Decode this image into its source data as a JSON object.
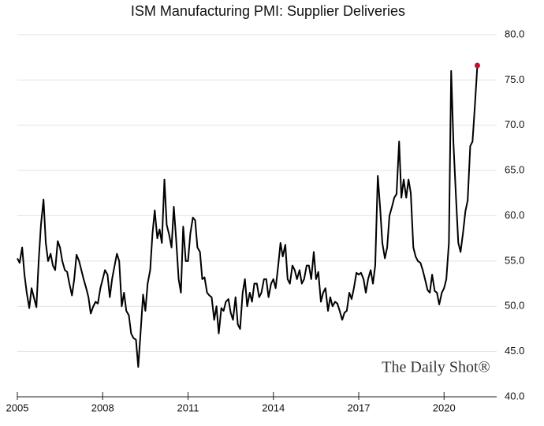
{
  "chart_data": {
    "type": "line",
    "title": "ISM Manufacturing PMI: Supplier Deliveries",
    "watermark": "The Daily Shot®",
    "xlim": [
      2005,
      2021.85
    ],
    "xticks": [
      2005,
      2008,
      2011,
      2014,
      2017,
      2020
    ],
    "ylim": [
      40,
      80
    ],
    "yticks": [
      {
        "value": 40,
        "label": "40.0"
      },
      {
        "value": 45,
        "label": "45.0"
      },
      {
        "value": 50,
        "label": "50.0"
      },
      {
        "value": 55,
        "label": "55.0"
      },
      {
        "value": 60,
        "label": "60.0"
      },
      {
        "value": 65,
        "label": "65.0"
      },
      {
        "value": 70,
        "label": "70.0"
      },
      {
        "value": 75,
        "label": "75.0"
      },
      {
        "value": 80,
        "label": "80.0"
      }
    ],
    "grid": true,
    "y_axis_side": "right",
    "highlight_last": true,
    "highlight_color": "#c8102e",
    "x": [
      2005.0,
      2005.08,
      2005.17,
      2005.25,
      2005.33,
      2005.42,
      2005.5,
      2005.58,
      2005.67,
      2005.75,
      2005.83,
      2005.92,
      2006.0,
      2006.08,
      2006.17,
      2006.25,
      2006.33,
      2006.42,
      2006.5,
      2006.58,
      2006.67,
      2006.75,
      2006.83,
      2006.92,
      2007.0,
      2007.08,
      2007.17,
      2007.25,
      2007.33,
      2007.42,
      2007.5,
      2007.58,
      2007.67,
      2007.75,
      2007.83,
      2007.92,
      2008.0,
      2008.08,
      2008.17,
      2008.25,
      2008.33,
      2008.42,
      2008.5,
      2008.58,
      2008.67,
      2008.75,
      2008.83,
      2008.92,
      2009.0,
      2009.08,
      2009.17,
      2009.25,
      2009.33,
      2009.42,
      2009.5,
      2009.58,
      2009.67,
      2009.75,
      2009.83,
      2009.92,
      2010.0,
      2010.08,
      2010.17,
      2010.25,
      2010.33,
      2010.42,
      2010.5,
      2010.58,
      2010.67,
      2010.75,
      2010.83,
      2010.92,
      2011.0,
      2011.08,
      2011.17,
      2011.25,
      2011.33,
      2011.42,
      2011.5,
      2011.58,
      2011.67,
      2011.75,
      2011.83,
      2011.92,
      2012.0,
      2012.08,
      2012.17,
      2012.25,
      2012.33,
      2012.42,
      2012.5,
      2012.58,
      2012.67,
      2012.75,
      2012.83,
      2012.92,
      2013.0,
      2013.08,
      2013.17,
      2013.25,
      2013.33,
      2013.42,
      2013.5,
      2013.58,
      2013.67,
      2013.75,
      2013.83,
      2013.92,
      2014.0,
      2014.08,
      2014.17,
      2014.25,
      2014.33,
      2014.42,
      2014.5,
      2014.58,
      2014.67,
      2014.75,
      2014.83,
      2014.92,
      2015.0,
      2015.08,
      2015.17,
      2015.25,
      2015.33,
      2015.42,
      2015.5,
      2015.58,
      2015.67,
      2015.75,
      2015.83,
      2015.92,
      2016.0,
      2016.08,
      2016.17,
      2016.25,
      2016.33,
      2016.42,
      2016.5,
      2016.58,
      2016.67,
      2016.75,
      2016.83,
      2016.92,
      2017.0,
      2017.08,
      2017.17,
      2017.25,
      2017.33,
      2017.42,
      2017.5,
      2017.58,
      2017.67,
      2017.75,
      2017.83,
      2017.92,
      2018.0,
      2018.08,
      2018.17,
      2018.25,
      2018.33,
      2018.42,
      2018.5,
      2018.58,
      2018.67,
      2018.75,
      2018.83,
      2018.92,
      2019.0,
      2019.08,
      2019.17,
      2019.25,
      2019.33,
      2019.42,
      2019.5,
      2019.58,
      2019.67,
      2019.75,
      2019.83,
      2019.92,
      2020.0,
      2020.08,
      2020.17,
      2020.25,
      2020.33,
      2020.42,
      2020.5,
      2020.58,
      2020.67,
      2020.75,
      2020.83,
      2020.92,
      2021.0,
      2021.08,
      2021.17
    ],
    "series": [
      {
        "name": "Supplier Deliveries",
        "color": "#000000",
        "values": [
          55.3,
          54.8,
          56.5,
          53.5,
          51.5,
          49.8,
          52,
          51,
          49.9,
          55,
          59,
          61.8,
          57,
          55,
          55.8,
          54.5,
          54,
          57.2,
          56.5,
          55,
          54,
          53.8,
          52.5,
          51.2,
          53,
          55.7,
          55,
          54,
          53,
          52,
          51,
          49.2,
          50,
          50.5,
          50.3,
          52,
          53,
          54,
          53.5,
          51,
          53,
          54.5,
          55.8,
          55,
          50,
          51.5,
          49.5,
          49,
          47,
          46.5,
          46.3,
          43.3,
          47,
          51.3,
          49.5,
          52.5,
          54,
          58,
          60.6,
          57.5,
          58.5,
          57,
          64,
          59,
          58,
          56.5,
          61,
          57.5,
          53,
          51.5,
          58.8,
          55,
          55,
          58,
          59.8,
          59.5,
          56.5,
          56,
          53,
          53.2,
          51.5,
          51.2,
          51,
          48.5,
          50,
          47,
          49.8,
          49.5,
          50.5,
          50.8,
          49.3,
          48.5,
          51,
          48,
          47.5,
          51.5,
          53,
          50,
          51.5,
          50.5,
          52.5,
          52.5,
          51,
          51.5,
          53,
          53,
          51,
          52.5,
          53,
          52,
          54.5,
          57,
          55.5,
          56.8,
          53,
          52.5,
          54.5,
          54,
          53,
          54,
          52.5,
          53,
          54.5,
          54.5,
          53,
          56,
          53,
          53.8,
          50.5,
          51.5,
          52,
          49.5,
          51,
          50,
          50.5,
          50.3,
          49.5,
          48.5,
          49.3,
          49.5,
          51.5,
          50.8,
          52,
          53.7,
          53.5,
          53.7,
          53,
          51.5,
          53,
          54,
          52.5,
          54.5,
          64.4,
          61,
          57,
          55.3,
          56.5,
          60,
          61,
          62,
          62.4,
          68.2,
          62,
          64,
          62,
          64,
          62.5,
          56.5,
          55.5,
          55,
          54.8,
          54,
          53,
          51.8,
          51.5,
          53.5,
          51.7,
          51.5,
          50.2,
          51.5,
          52,
          53,
          57,
          76,
          68,
          62,
          57,
          56,
          58.2,
          60.5,
          61.7,
          67.7,
          68.2,
          72,
          76.6
        ]
      }
    ]
  }
}
